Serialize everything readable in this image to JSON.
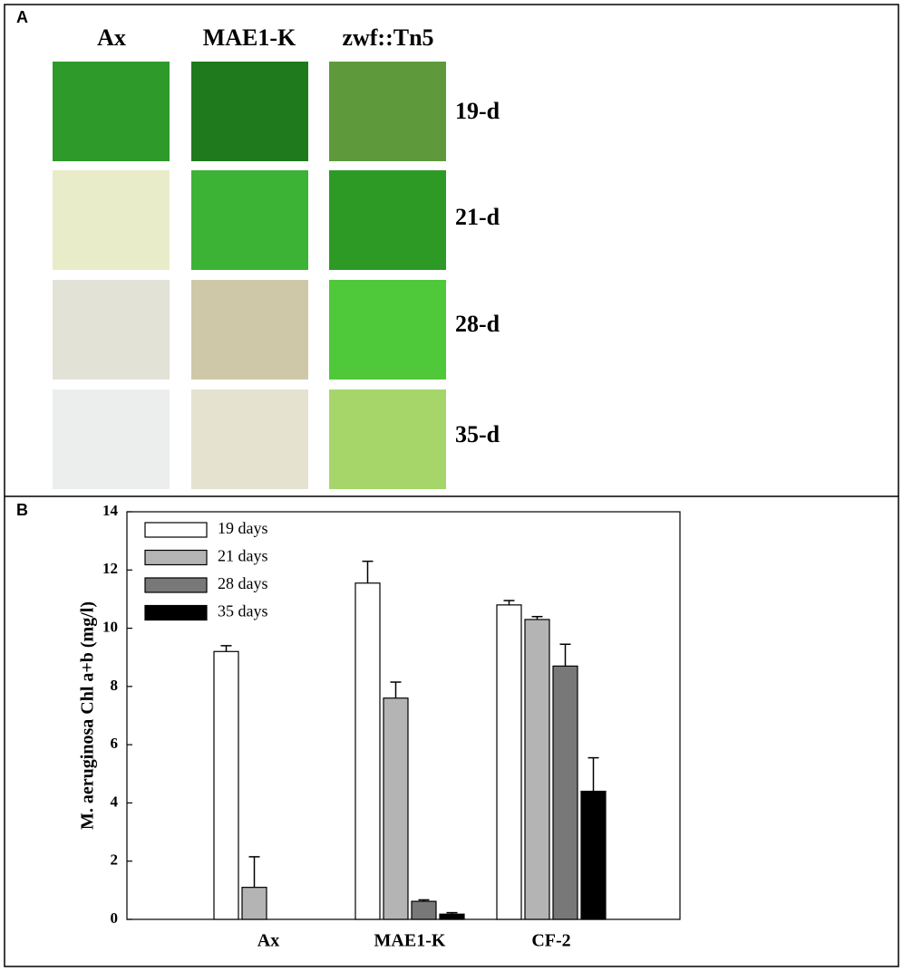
{
  "panel_a": {
    "label": "A",
    "columns": [
      "Ax",
      "MAE1-K",
      "zwf::Tn5"
    ],
    "rows": [
      "19-d",
      "21-d",
      "28-d",
      "35-d"
    ]
  },
  "chart_data": {
    "type": "bar",
    "label": "B",
    "ylabel": "M. aeruginosa Chl a+b (mg/l)",
    "categories": [
      "Ax",
      "MAE1-K",
      "CF-2"
    ],
    "series": [
      {
        "name": "19 days",
        "color": "#ffffff",
        "values": [
          9.2,
          11.55,
          10.8
        ],
        "errors": [
          0.2,
          0.75,
          0.15
        ]
      },
      {
        "name": "21 days",
        "color": "#b4b4b4",
        "values": [
          1.1,
          7.6,
          10.3
        ],
        "errors": [
          1.05,
          0.55,
          0.1
        ]
      },
      {
        "name": "28 days",
        "color": "#787878",
        "values": [
          null,
          0.62,
          8.7
        ],
        "errors": [
          null,
          0.05,
          0.75
        ]
      },
      {
        "name": "35 days",
        "color": "#000000",
        "values": [
          null,
          0.18,
          4.4
        ],
        "errors": [
          null,
          0.05,
          1.15
        ]
      }
    ],
    "ylim": [
      0,
      14
    ],
    "yticks": [
      0,
      2,
      4,
      6,
      8,
      10,
      12,
      14
    ],
    "legend": "upper left"
  }
}
